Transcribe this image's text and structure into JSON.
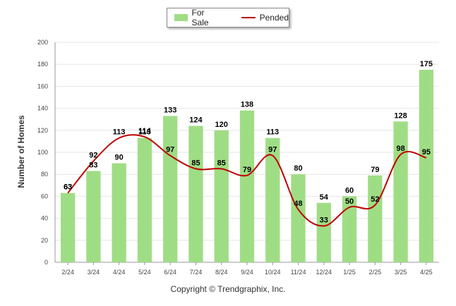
{
  "chart_data": {
    "type": "bar",
    "categories": [
      "2/24",
      "3/24",
      "4/24",
      "5/24",
      "6/24",
      "7/24",
      "8/24",
      "9/24",
      "10/24",
      "11/24",
      "12/24",
      "1/25",
      "2/25",
      "3/25",
      "4/25"
    ],
    "series": [
      {
        "name": "For Sale",
        "kind": "bar",
        "color": "#9fdd85",
        "values": [
          63,
          83,
          90,
          113,
          133,
          124,
          120,
          138,
          113,
          80,
          54,
          60,
          79,
          128,
          175
        ]
      },
      {
        "name": "Pended",
        "kind": "line",
        "color": "#c00000",
        "values": [
          63,
          92,
          113,
          114,
          97,
          85,
          85,
          79,
          97,
          48,
          33,
          50,
          52,
          98,
          95
        ]
      }
    ],
    "ylabel": "Number of Homes",
    "xlabel": "",
    "ylim": [
      0,
      200
    ],
    "yticks": [
      0,
      20,
      40,
      60,
      80,
      100,
      120,
      140,
      160,
      180,
      200
    ],
    "grid": true,
    "legend_position": "top-center"
  },
  "legend": {
    "bar_label": "For Sale",
    "line_label": "Pended"
  },
  "footer": "Copyright © Trendgraphix, Inc."
}
